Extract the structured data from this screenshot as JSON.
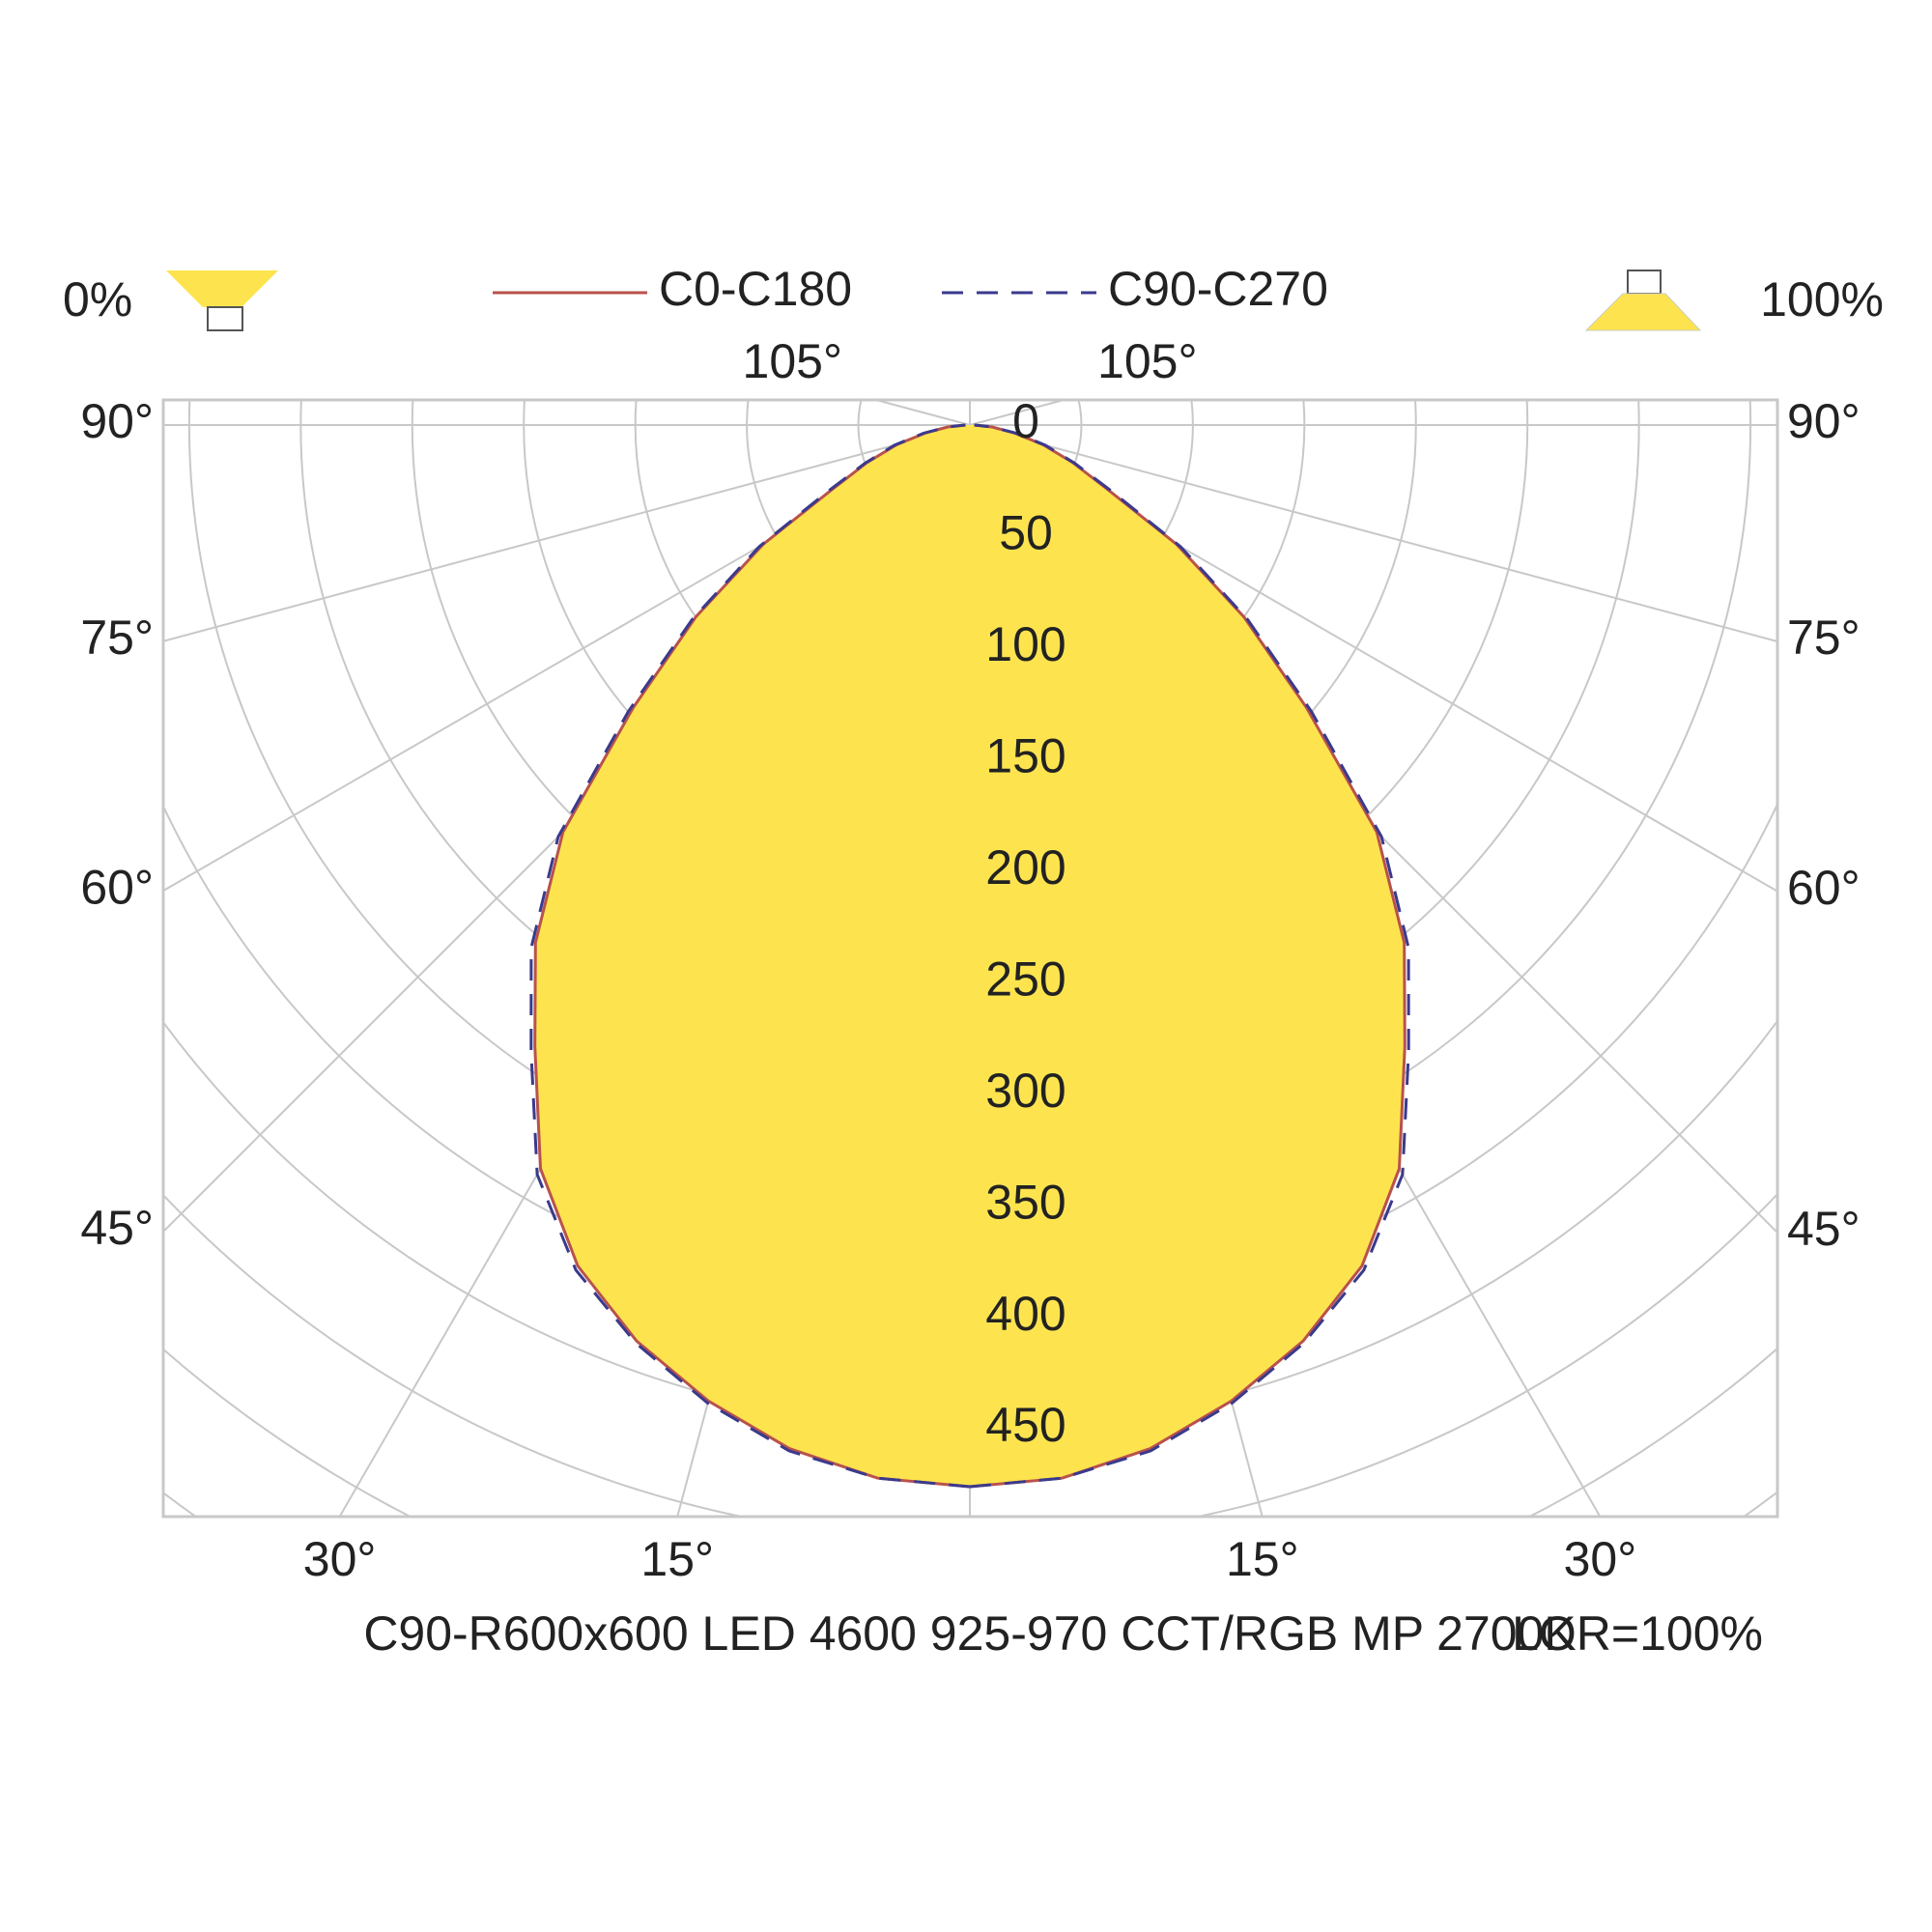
{
  "chart_data": {
    "type": "polar",
    "title": "C90-R600x600 LED 4600 925-970 CCT/RGB MP 2700K",
    "annotation": "LOR=100%",
    "downward_label": "0%",
    "upward_label": "100%",
    "x": [
      0,
      5,
      10,
      15,
      20,
      25,
      30,
      35,
      40,
      45,
      50,
      55,
      60,
      65,
      70,
      75,
      80,
      85,
      90
    ],
    "series": [
      {
        "name": "C0-C180",
        "color": "#b8524c",
        "dashed": false,
        "values": [
          476,
          474,
          466,
          453,
          437,
          416,
          385,
          340,
          303,
          258,
          197,
          150,
          107,
          68,
          49,
          34,
          20,
          10,
          2
        ]
      },
      {
        "name": "C90-C270",
        "color": "#3a3a8c",
        "dashed": true,
        "values": [
          476,
          474,
          467,
          454,
          438,
          418,
          388,
          343,
          306,
          261,
          200,
          152,
          109,
          70,
          50,
          35,
          21,
          10,
          2
        ]
      }
    ],
    "fill": "#fde44f",
    "ylim": [
      0,
      450
    ],
    "yticks": [
      0,
      50,
      100,
      150,
      200,
      250,
      300,
      350,
      400,
      450
    ],
    "xticks": [
      {
        "value": 15,
        "label": "15°"
      },
      {
        "value": 30,
        "label": "30°"
      },
      {
        "value": 45,
        "label": "45°"
      },
      {
        "value": 60,
        "label": "60°"
      },
      {
        "value": 75,
        "label": "75°"
      },
      {
        "value": 90,
        "label": "90°"
      },
      {
        "value": 105,
        "label": "105°"
      }
    ],
    "grid": true
  }
}
